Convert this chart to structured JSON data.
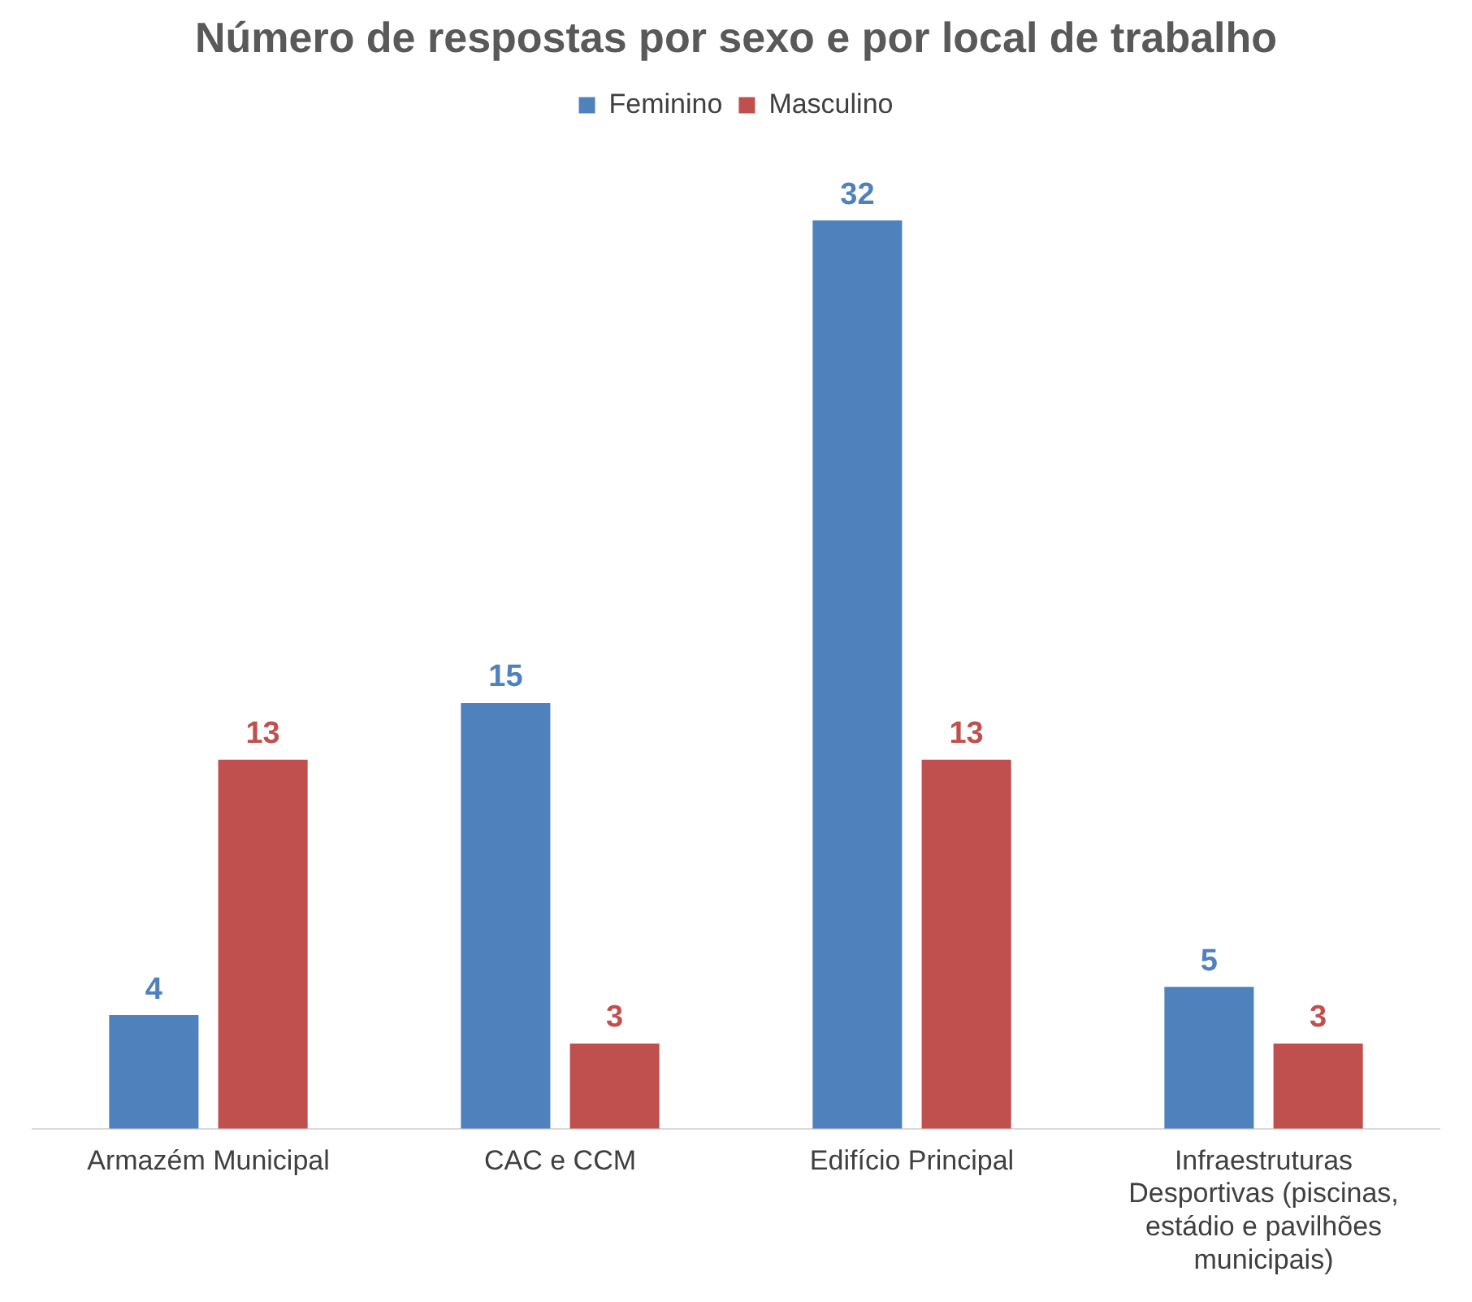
{
  "chart_data": {
    "type": "bar",
    "title": "Número de respostas por sexo e por local de trabalho",
    "categories": [
      "Armazém Municipal",
      "CAC e CCM",
      "Edifício Principal",
      "Infraestruturas Desportivas (piscinas, estádio e pavilhões municipais)"
    ],
    "series": [
      {
        "name": "Feminino",
        "color": "#4f81bd",
        "values": [
          4,
          15,
          32,
          5
        ]
      },
      {
        "name": "Masculino",
        "color": "#c0504d",
        "values": [
          13,
          3,
          13,
          3
        ]
      }
    ],
    "data_labels": true,
    "legend": "top",
    "grid": false
  }
}
